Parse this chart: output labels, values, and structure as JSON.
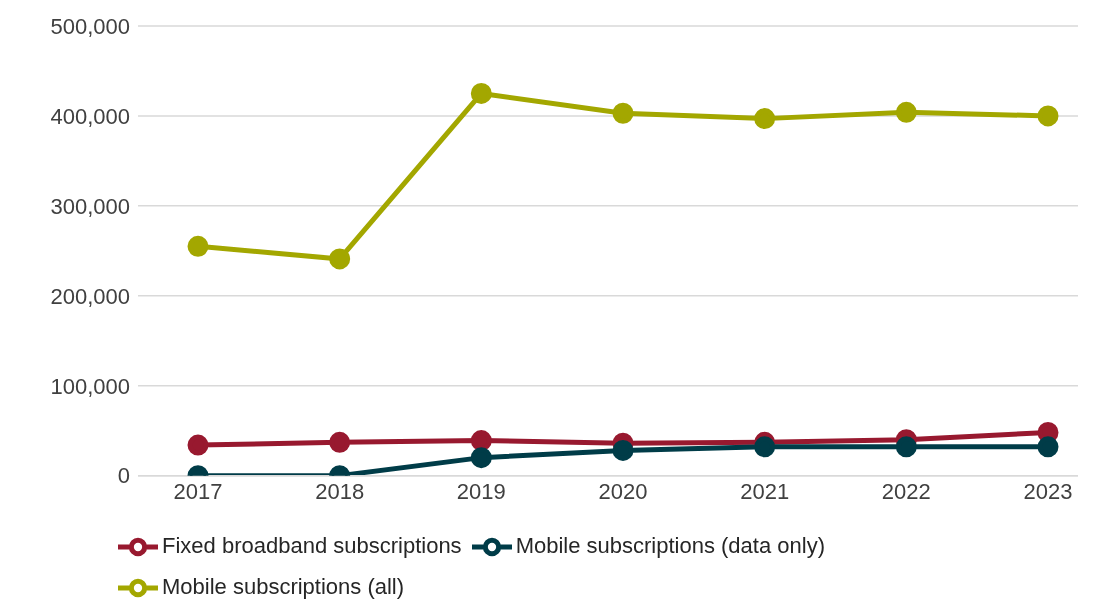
{
  "chart_data": {
    "type": "line",
    "categories": [
      "2017",
      "2018",
      "2019",
      "2020",
      "2021",
      "2022",
      "2023"
    ],
    "series": [
      {
        "name": "Fixed broadband subscriptions",
        "color": "#98192f",
        "values": [
          34000,
          37000,
          39000,
          36000,
          37000,
          40000,
          48000
        ]
      },
      {
        "name": "Mobile subscriptions (data only)",
        "color": "#003c48",
        "values": [
          0,
          0,
          20000,
          28000,
          32000,
          32000,
          32000
        ]
      },
      {
        "name": "Mobile subscriptions (all)",
        "color": "#a3a700",
        "values": [
          255000,
          241000,
          425000,
          403000,
          397000,
          404000,
          400000
        ]
      }
    ],
    "ylim": [
      0,
      500000
    ],
    "yticks": [
      0,
      {
        "value": 100000,
        "label": "100,000"
      },
      {
        "value": 200000,
        "label": "200,000"
      },
      {
        "value": 300000,
        "label": "300,000"
      },
      {
        "value": 400000,
        "label": "400,000"
      },
      {
        "value": 500000,
        "label": "500,000"
      }
    ],
    "grid": "y",
    "legend": "bottom",
    "marker": "circle",
    "line_style": "solid"
  }
}
